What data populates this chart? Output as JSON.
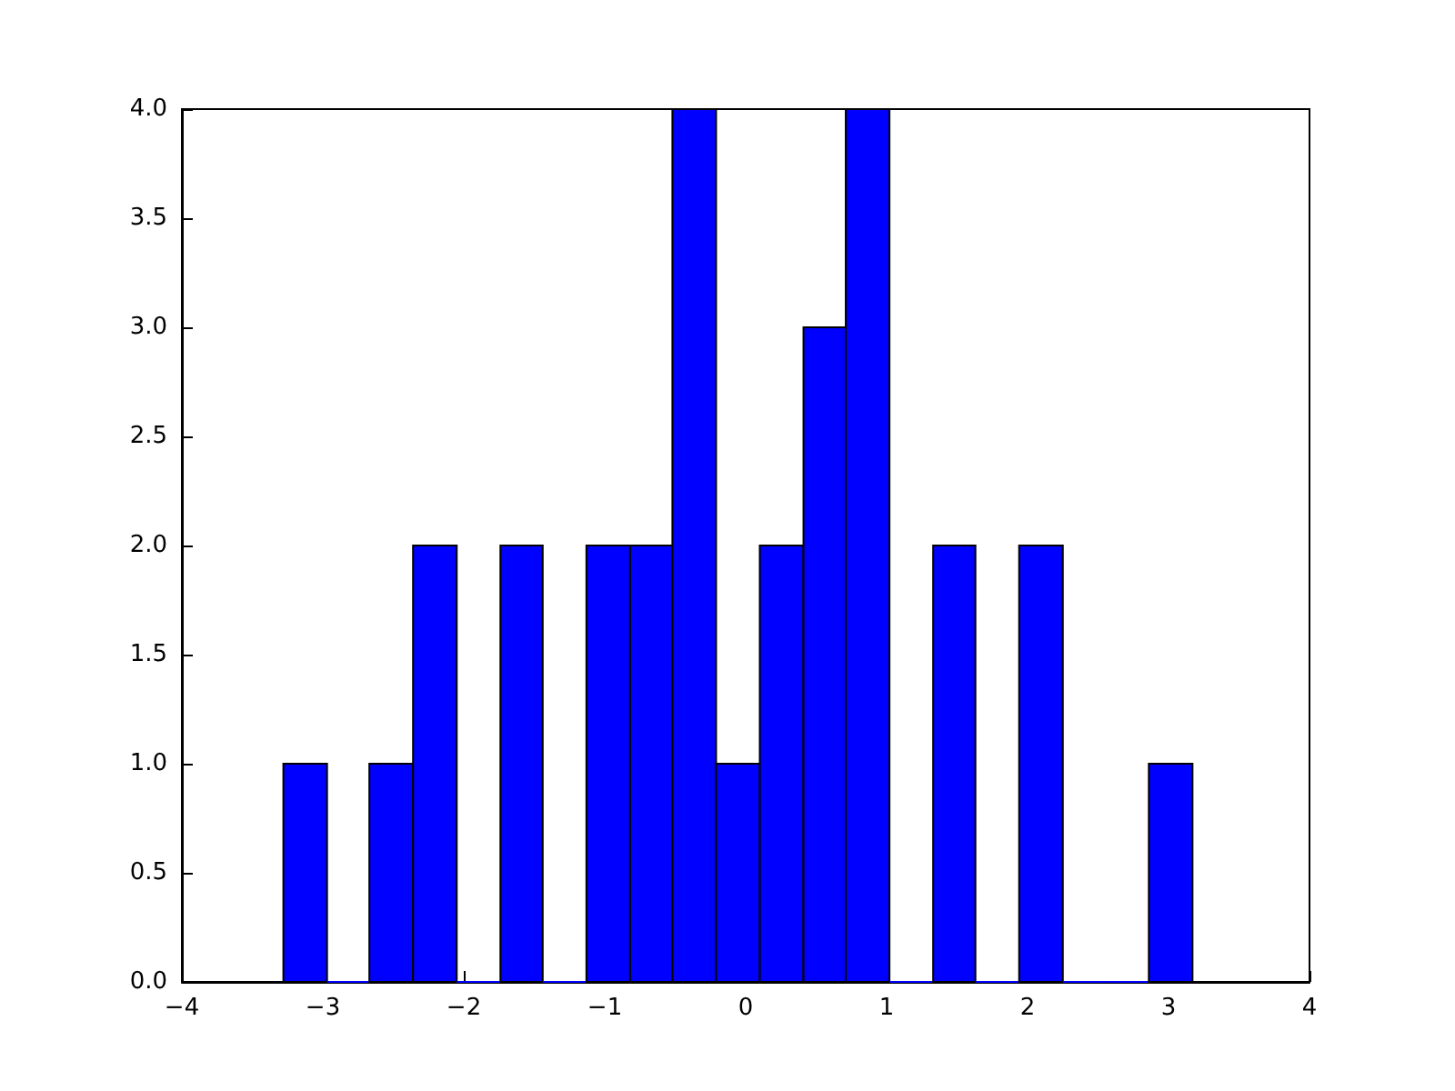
{
  "chart_data": {
    "type": "histogram",
    "bins": [
      -3.28,
      -2.97,
      -2.67,
      -2.36,
      -2.05,
      -1.74,
      -1.44,
      -1.13,
      -0.82,
      -0.52,
      -0.21,
      0.1,
      0.41,
      0.71,
      1.02,
      1.33,
      1.63,
      1.94,
      2.25,
      2.56,
      2.86,
      3.17
    ],
    "values": [
      1,
      0,
      1,
      2,
      0,
      2,
      0,
      2,
      2,
      4,
      1,
      2,
      3,
      4,
      0,
      2,
      0,
      2,
      0,
      0,
      1
    ],
    "color": "#0000ff",
    "xlim": [
      -4,
      4
    ],
    "xticks": [
      {
        "value": -4,
        "label": "−4"
      },
      {
        "value": -3,
        "label": "−3"
      },
      {
        "value": -2,
        "label": "−2"
      },
      {
        "value": -1,
        "label": "−1"
      },
      0,
      1,
      2,
      3,
      4
    ],
    "ylim": [
      0,
      4
    ],
    "yticks": [
      {
        "value": 0,
        "label": "0.0"
      },
      {
        "value": 0.5,
        "label": "0.5"
      },
      {
        "value": 1,
        "label": "1.0"
      },
      {
        "value": 1.5,
        "label": "1.5"
      },
      {
        "value": 2,
        "label": "2.0"
      },
      {
        "value": 2.5,
        "label": "2.5"
      },
      {
        "value": 3,
        "label": "3.0"
      },
      {
        "value": 3.5,
        "label": "3.5"
      },
      {
        "value": 4,
        "label": "4.0"
      }
    ],
    "grid": false
  }
}
